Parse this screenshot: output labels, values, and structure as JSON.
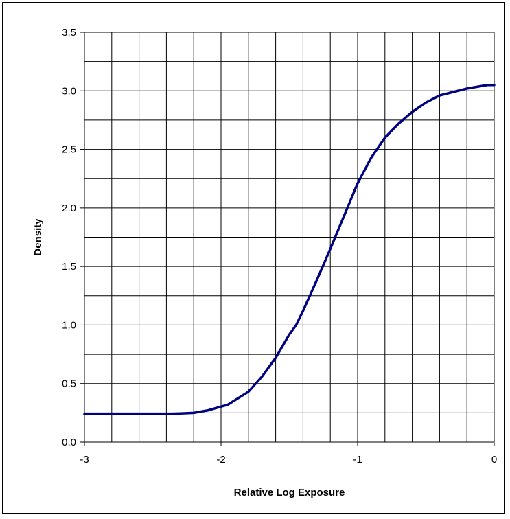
{
  "chart_data": {
    "type": "line",
    "title": "",
    "xlabel": "Relative Log Exposure",
    "ylabel": "Density",
    "xlim": [
      -3,
      0
    ],
    "ylim": [
      0,
      3.5
    ],
    "x_ticks": [
      -3,
      -2,
      -1,
      0
    ],
    "x_tick_labels": [
      "-3",
      "-2",
      "-1",
      "0"
    ],
    "x_minor_step": 0.2,
    "y_ticks": [
      0,
      0.5,
      1,
      1.5,
      2,
      2.5,
      3,
      3.5
    ],
    "y_tick_labels": [
      "0.0",
      "0.5",
      "1.0",
      "1.5",
      "2.0",
      "2.5",
      "3.0",
      "3.5"
    ],
    "y_minor_step": 0.25,
    "grid": true,
    "legend": "none",
    "colors": {
      "line": "#000080",
      "grid": "#000000",
      "frame": "#000000"
    },
    "series": [
      {
        "x": [
          -3.0,
          -2.8,
          -2.6,
          -2.4,
          -2.2,
          -2.1,
          -1.95,
          -1.8,
          -1.7,
          -1.6,
          -1.5,
          -1.45,
          -1.4,
          -1.3,
          -1.2,
          -1.1,
          -1.0,
          -0.9,
          -0.8,
          -0.7,
          -0.6,
          -0.5,
          -0.4,
          -0.3,
          -0.2,
          -0.1,
          -0.05,
          0.0
        ],
        "y": [
          0.24,
          0.24,
          0.24,
          0.24,
          0.25,
          0.27,
          0.32,
          0.43,
          0.56,
          0.72,
          0.92,
          1.0,
          1.12,
          1.38,
          1.65,
          1.93,
          2.21,
          2.43,
          2.6,
          2.72,
          2.82,
          2.9,
          2.96,
          2.99,
          3.02,
          3.04,
          3.05,
          3.05
        ]
      }
    ]
  }
}
